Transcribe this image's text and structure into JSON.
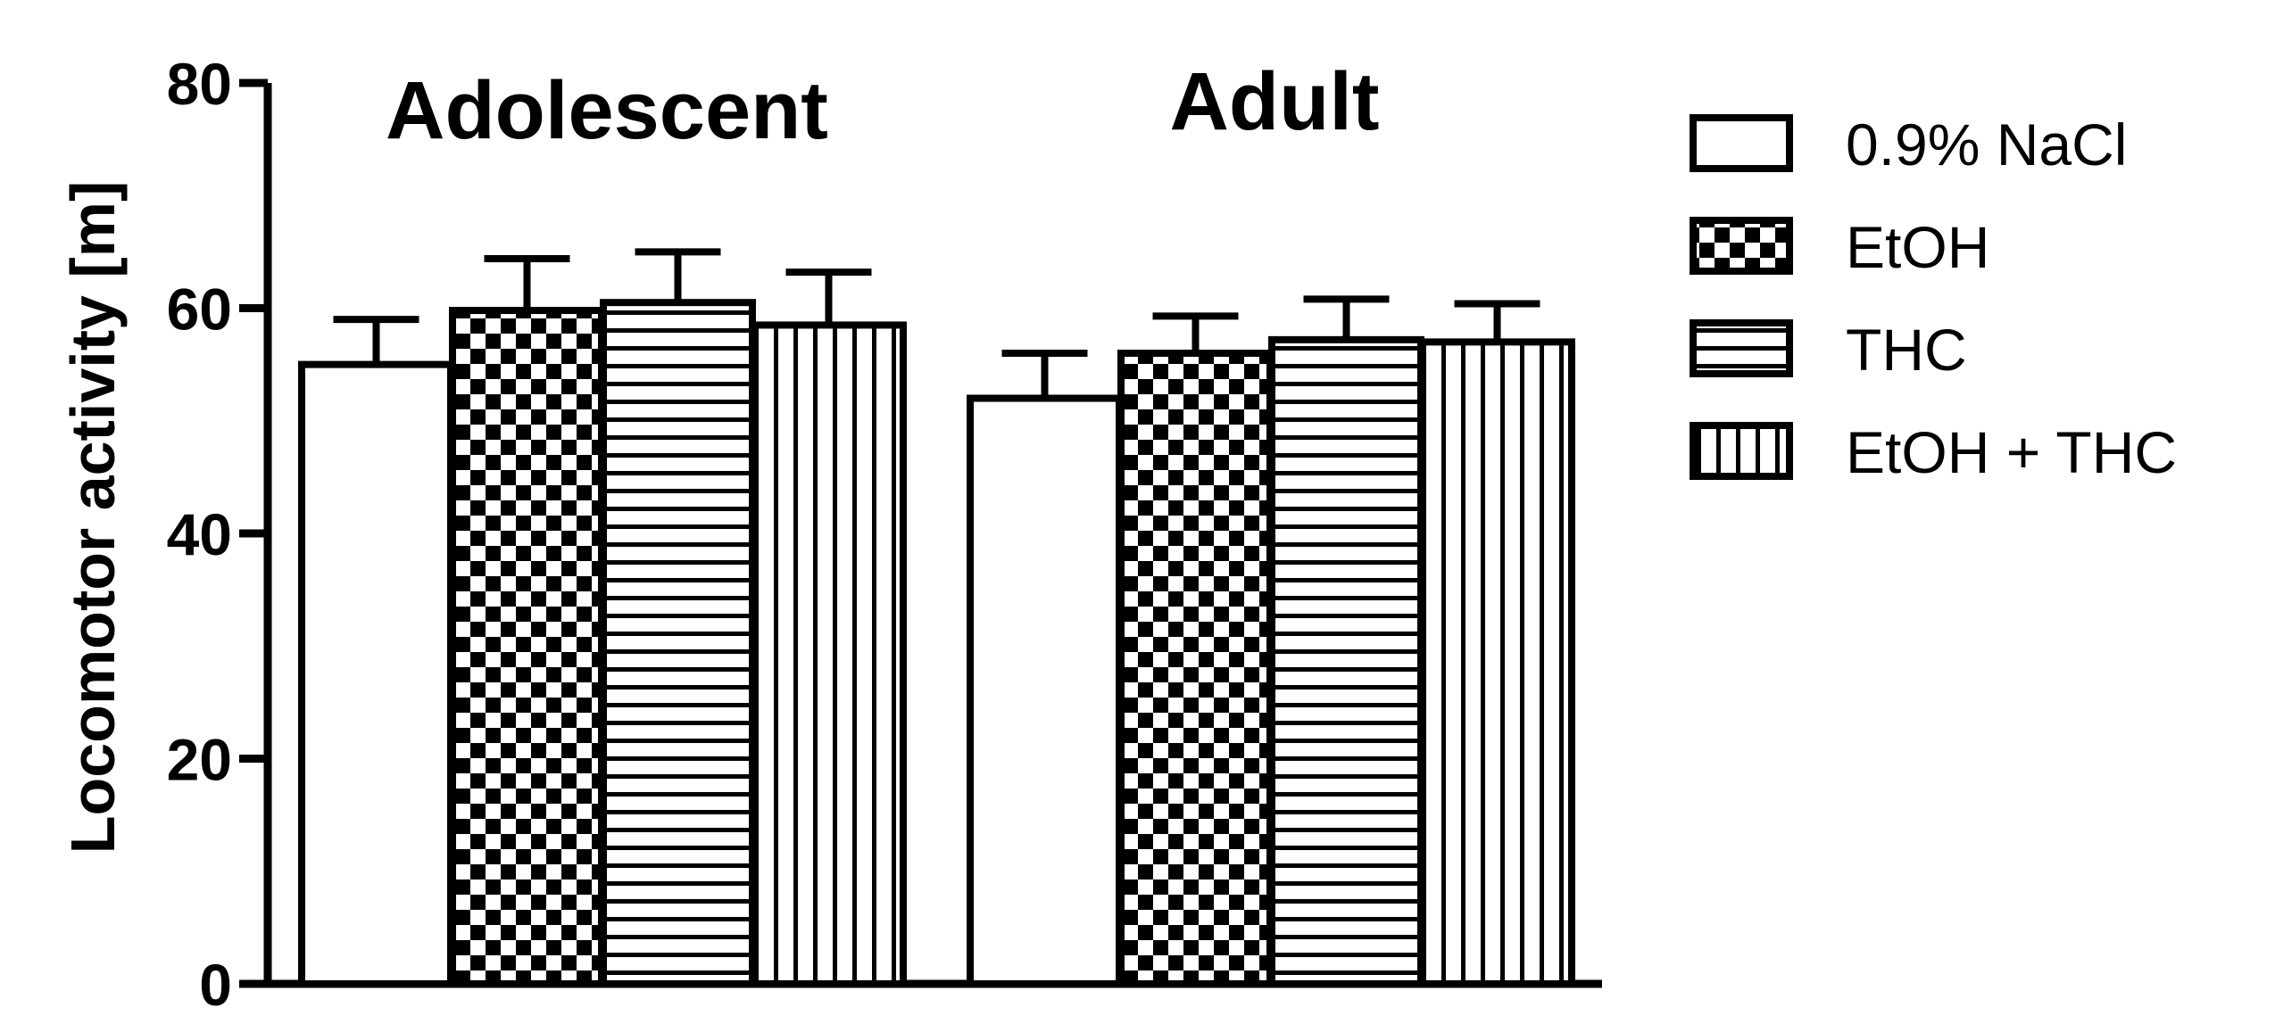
{
  "chart_data": {
    "type": "bar",
    "categories": [
      "Adolescent",
      "Adult"
    ],
    "series": [
      {
        "name": "0.9% NaCl",
        "values": [
          55,
          52
        ],
        "errors": [
          4,
          4
        ],
        "pattern": "none"
      },
      {
        "name": "EtOH",
        "values": [
          59.8,
          56
        ],
        "errors": [
          4.6,
          3.3
        ],
        "pattern": "checker"
      },
      {
        "name": "THC",
        "values": [
          60.5,
          57.2
        ],
        "errors": [
          4.5,
          3.6
        ],
        "pattern": "horizontal"
      },
      {
        "name": "EtOH + THC",
        "values": [
          58.5,
          57
        ],
        "errors": [
          4.7,
          3.4
        ],
        "pattern": "vertical"
      }
    ],
    "ylabel": "Locomotor activity [m]",
    "xlabel": "",
    "ylim": [
      0,
      80
    ],
    "yticks": [
      0,
      20,
      40,
      60,
      80
    ],
    "grid": false,
    "legend_position": "right",
    "colors": {
      "stroke": "#000000",
      "fill": "#ffffff"
    }
  }
}
